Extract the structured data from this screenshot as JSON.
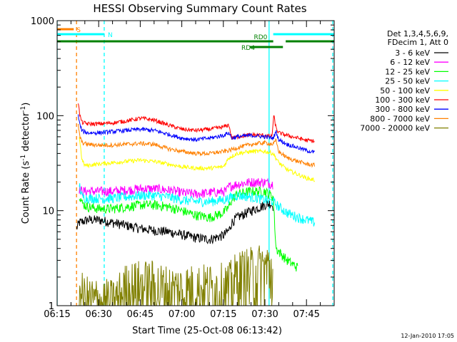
{
  "chart_data": {
    "type": "line",
    "title": "HESSI Observing Summary Count Rates",
    "xlabel": "Start Time (25-Oct-08 06:13:42)",
    "ylabel_main": "Count Rate (s",
    "ylabel_sup1": "-1",
    "ylabel_mid": " detector",
    "ylabel_sup2": "-1",
    "ylabel_end": ")",
    "yscale": "log",
    "ylim": [
      1,
      1000
    ],
    "xlim_min": [
      375,
      475
    ],
    "x_ticks": [
      {
        "min": 375,
        "label": "06:15"
      },
      {
        "min": 390,
        "label": "06:30"
      },
      {
        "min": 405,
        "label": "06:45"
      },
      {
        "min": 420,
        "label": "07:00"
      },
      {
        "min": 435,
        "label": "07:15"
      },
      {
        "min": 450,
        "label": "07:30"
      },
      {
        "min": 465,
        "label": "07:45"
      }
    ],
    "y_ticks": [
      {
        "v": 1,
        "label": "1"
      },
      {
        "v": 10,
        "label": "10"
      },
      {
        "v": 100,
        "label": "100"
      },
      {
        "v": 1000,
        "label": "1000"
      }
    ],
    "legend_header": [
      "Det 1,3,4,5,6,9,",
      "FDecim 1, Att 0"
    ],
    "series": [
      {
        "name": "3 - 6 keV",
        "color": "#000000",
        "x": [
          382,
          383,
          386,
          390,
          395,
          400,
          405,
          410,
          415,
          420,
          425,
          430,
          435,
          437,
          438,
          440,
          445,
          450,
          452,
          453
        ],
        "y": [
          6.5,
          7.5,
          8,
          8,
          7.5,
          7,
          6.5,
          6.2,
          6,
          5.6,
          5.2,
          5,
          5.5,
          6.2,
          7.5,
          8.5,
          10,
          11.5,
          12,
          11
        ]
      },
      {
        "name": "6 - 12 keV",
        "color": "#ff00ff",
        "x": [
          383,
          384,
          386,
          390,
          395,
          400,
          405,
          410,
          415,
          420,
          425,
          430,
          436,
          437,
          440,
          445,
          450,
          453
        ],
        "y": [
          17,
          16,
          16,
          16,
          16,
          16.5,
          17,
          17,
          16.5,
          15.5,
          15,
          15.5,
          16,
          18,
          19,
          20,
          20,
          19
        ]
      },
      {
        "name": "12 - 25 keV",
        "color": "#00ff00",
        "x": [
          383,
          384,
          386,
          390,
          395,
          400,
          405,
          410,
          415,
          420,
          425,
          430,
          435,
          437,
          438,
          440,
          445,
          450,
          453,
          454,
          458,
          462
        ],
        "y": [
          15,
          12,
          11,
          10.5,
          10.5,
          11,
          11.5,
          11.5,
          11,
          10,
          9,
          8.5,
          9.5,
          11,
          13,
          15,
          16,
          16,
          14,
          4,
          3,
          2.5
        ]
      },
      {
        "name": "25 - 50 keV",
        "color": "#00ffff",
        "x": [
          383,
          384,
          386,
          390,
          395,
          400,
          405,
          410,
          415,
          420,
          425,
          430,
          435,
          437,
          438,
          440,
          445,
          450,
          453,
          455,
          458,
          462,
          465,
          468
        ],
        "y": [
          19,
          14,
          13.5,
          13.5,
          13.5,
          14,
          14.5,
          14.5,
          14,
          13,
          12.5,
          12.5,
          13,
          13.5,
          14,
          14.5,
          14,
          13,
          12.5,
          11,
          9.5,
          8.5,
          8,
          7.5
        ]
      },
      {
        "name": "50 - 100 keV",
        "color": "#ffff00",
        "x": [
          383,
          384,
          385,
          386,
          390,
          395,
          400,
          405,
          410,
          415,
          420,
          425,
          430,
          435,
          437,
          440,
          445,
          450,
          453,
          455,
          458,
          462,
          465,
          468
        ],
        "y": [
          60,
          34,
          30,
          30,
          31,
          32,
          33,
          34,
          33,
          31,
          29,
          28,
          28,
          29,
          36,
          40,
          42,
          42,
          40,
          32,
          27,
          24,
          22,
          21
        ]
      },
      {
        "name": "100 - 300 keV",
        "color": "#ff0000",
        "x": [
          382.6,
          383.2,
          384,
          386,
          390,
          395,
          400,
          405,
          410,
          415,
          420,
          425,
          430,
          435,
          437,
          438,
          440,
          445,
          450,
          452.5,
          453.2,
          454,
          455,
          458,
          462,
          465,
          468
        ],
        "y": [
          140,
          100,
          85,
          82,
          82,
          84,
          88,
          94,
          90,
          80,
          72,
          70,
          72,
          76,
          80,
          58,
          60,
          63,
          62,
          60,
          100,
          74,
          66,
          62,
          58,
          55,
          54
        ]
      },
      {
        "name": "300 - 800 keV",
        "color": "#0000ff",
        "x": [
          382.6,
          383.2,
          384,
          386,
          390,
          395,
          400,
          405,
          410,
          415,
          420,
          425,
          430,
          435,
          437,
          438,
          440,
          445,
          450,
          453,
          454,
          455,
          458,
          462,
          465,
          468
        ],
        "y": [
          100,
          80,
          69,
          66,
          66,
          68,
          70,
          72,
          70,
          64,
          58,
          56,
          58,
          62,
          66,
          58,
          60,
          62,
          60,
          58,
          68,
          56,
          50,
          46,
          43,
          41
        ]
      },
      {
        "name": "800 - 7000 keV",
        "color": "#ff8000",
        "x": [
          382.6,
          383.2,
          384,
          386,
          390,
          395,
          400,
          405,
          410,
          415,
          420,
          425,
          430,
          435,
          437,
          440,
          445,
          450,
          453,
          454,
          455,
          458,
          462,
          465,
          468
        ],
        "y": [
          80,
          60,
          52,
          50,
          49,
          49,
          50,
          51,
          50,
          45,
          42,
          40,
          40,
          42,
          43,
          46,
          50,
          52,
          50,
          55,
          42,
          36,
          33,
          31,
          30
        ]
      },
      {
        "name": "7000 - 20000 keV",
        "color": "#808000",
        "x": [
          383,
          384,
          385,
          395,
          400,
          405,
          410,
          415,
          435,
          437,
          440,
          445,
          450,
          453
        ],
        "y": [
          1.6,
          1.2,
          1.1,
          1.0,
          1.5,
          1.6,
          1.6,
          1.4,
          1.5,
          1.5,
          2.0,
          2.2,
          2.5,
          2.4
        ]
      }
    ],
    "flags": [
      {
        "label": "S",
        "color": "#ff8000",
        "segments": [
          [
            375,
            381
          ]
        ]
      },
      {
        "label": "N",
        "color": "#00ffff",
        "segments": [
          [
            375,
            392
          ],
          [
            453,
            475
          ]
        ]
      },
      {
        "label": "RD0",
        "color": "#008000",
        "segments": [
          [
            375,
            453
          ],
          [
            457.5,
            475
          ]
        ]
      },
      {
        "label": "RD4",
        "color": "#008000",
        "segments": [
          [
            444.5,
            456.5
          ]
        ]
      }
    ],
    "vlines": [
      {
        "min": 382,
        "color": "#ff8000",
        "style": "dashed"
      },
      {
        "min": 392,
        "color": "#00ffff",
        "style": "dashed"
      },
      {
        "min": 451.5,
        "color": "#00ffff",
        "style": "solid"
      },
      {
        "min": 474.5,
        "color": "#00ffff",
        "style": "dashed"
      },
      {
        "min": 375,
        "color": "#00ffff",
        "style": "solid"
      }
    ],
    "timestamp": "12-Jan-2010 17:05"
  }
}
